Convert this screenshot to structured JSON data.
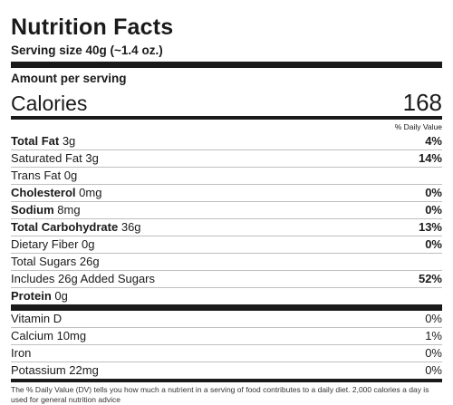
{
  "label": {
    "title": "Nutrition Facts",
    "serving": "Serving size 40g (~1.4 oz.)",
    "amount_per_serving": "Amount per serving",
    "calories_label": "Calories",
    "calories_value": "168",
    "daily_value_header": "% Daily Value (DV)",
    "nutrients": [
      {
        "name": "Total Fat",
        "amount": "3g",
        "dv": "4%"
      },
      {
        "name": "Saturated Fat 3g",
        "amount": "",
        "dv": "14%"
      },
      {
        "name": "Trans Fat 0g",
        "amount": "",
        "dv": ""
      },
      {
        "name": "Cholesterol",
        "amount": "0mg",
        "dv": "0%"
      },
      {
        "name": "Sodium",
        "amount": "8mg",
        "dv": "0%"
      },
      {
        "name": "Total Carbohydrate",
        "amount": "36g",
        "dv": "13%"
      },
      {
        "name": "Dietary Fiber 0g",
        "amount": "",
        "dv": "0%"
      },
      {
        "name": "Total Sugars 26g",
        "amount": "",
        "dv": ""
      },
      {
        "name": "Includes 26g Added Sugars",
        "amount": "",
        "dv": "52%"
      },
      {
        "name": "Protein",
        "amount": "0g",
        "dv": ""
      }
    ],
    "vitamins": [
      {
        "name": "Vitamin D",
        "dv": "0%"
      },
      {
        "name": "Calcium 10mg",
        "dv": "1%"
      },
      {
        "name": "Iron",
        "dv": "0%"
      },
      {
        "name": "Potassium 22mg",
        "dv": "0%"
      }
    ],
    "footnote": "The % Daily Value (DV) tells you how much a nutrient in a serving of food contributes to a daily diet. 2,000 calories a day is used for general nutrition advice"
  }
}
